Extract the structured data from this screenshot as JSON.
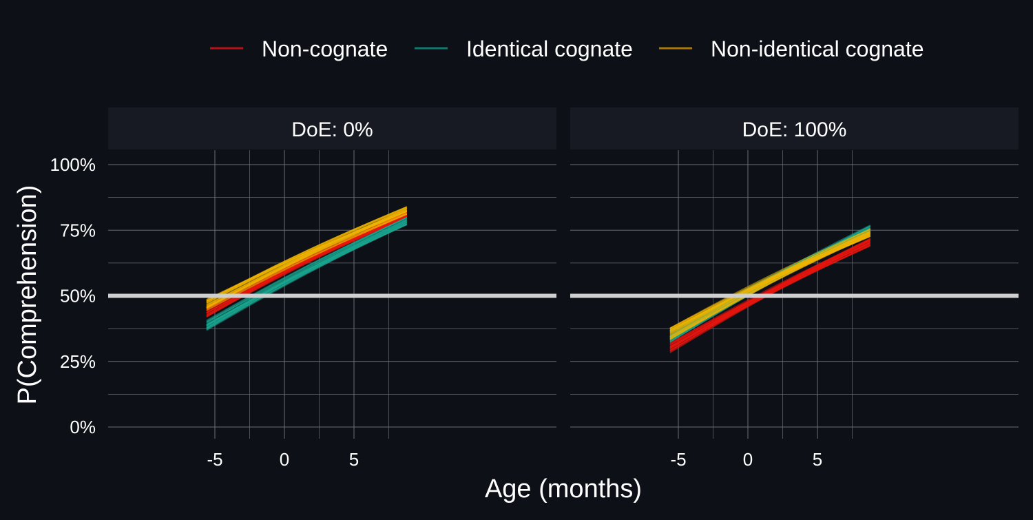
{
  "chart_data": {
    "type": "line",
    "xlabel": "Age (months)",
    "ylabel": "P(Comprehension)",
    "x_range": [
      -5.6,
      8.8
    ],
    "ylim": [
      0,
      1
    ],
    "x_ticks": [
      -5,
      0,
      5
    ],
    "x_tick_labels": [
      "-5",
      "0",
      "5"
    ],
    "y_ticks": [
      0,
      0.25,
      0.5,
      0.75,
      1
    ],
    "y_tick_labels": [
      "0%",
      "25%",
      "50%",
      "75%",
      "100%"
    ],
    "reference_line": 0.5,
    "grid": true,
    "legend_position": "top",
    "colors": {
      "background": "#0d1017",
      "strip": "#171a22",
      "grid": "#6b6e75",
      "reference": "#cfcfcf",
      "text": "#ffffff"
    },
    "legend": [
      {
        "name": "Non-cognate",
        "color": "#b3141a"
      },
      {
        "name": "Identical cognate",
        "color": "#0f7a6c"
      },
      {
        "name": "Non-identical cognate",
        "color": "#a7770a"
      }
    ],
    "panels": [
      {
        "label": "DoE: 0%",
        "series": [
          {
            "name": "Non-cognate",
            "color": "#e8150f",
            "start": 0.44,
            "end": 0.81
          },
          {
            "name": "Identical cognate",
            "color": "#19a58f",
            "start": 0.39,
            "end": 0.785
          },
          {
            "name": "Non-identical cognate",
            "color": "#f0b400",
            "start": 0.465,
            "end": 0.825
          }
        ]
      },
      {
        "label": "DoE: 100%",
        "series": [
          {
            "name": "Non-cognate",
            "color": "#e8150f",
            "start": 0.305,
            "end": 0.705
          },
          {
            "name": "Identical cognate",
            "color": "#19a58f",
            "start": 0.345,
            "end": 0.755
          },
          {
            "name": "Non-identical cognate",
            "color": "#f0b400",
            "start": 0.355,
            "end": 0.74
          }
        ]
      }
    ]
  }
}
